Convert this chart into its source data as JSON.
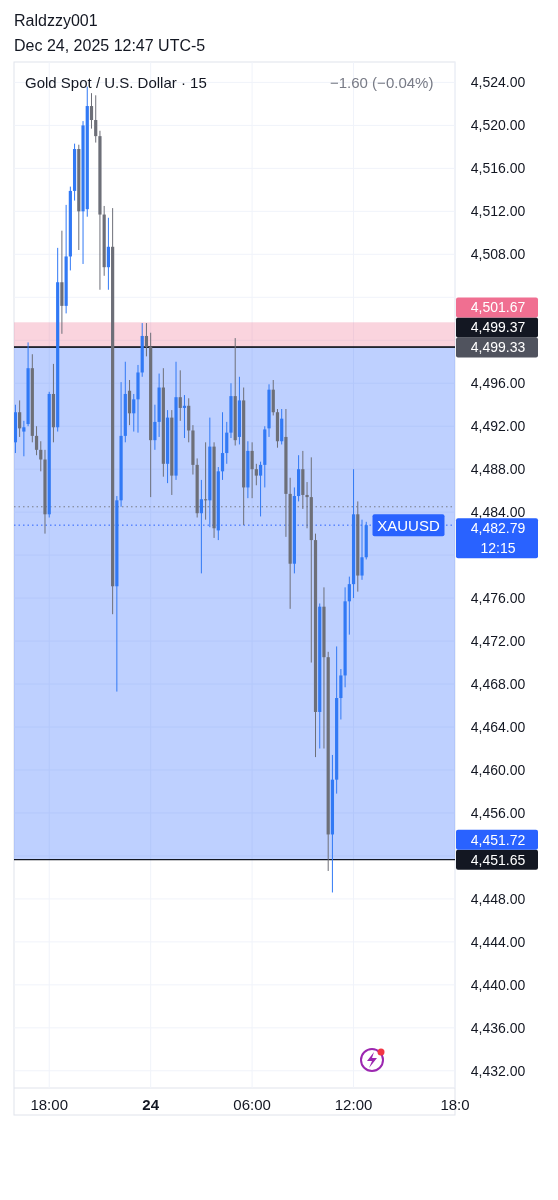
{
  "chart_data": {
    "type": "candlestick",
    "title": "Gold Spot / U.S. Dollar · 15",
    "subtitle": "Dec 24, 2025 12:47 UTC-5",
    "annotations": [
      "Raldzzy001",
      "−1.60 (−0.04%)",
      "12:15",
      {
        "text": "XAUUSD",
        "x": "2025-12-24T15:15",
        "y": 4482.79
      }
    ],
    "x": [
      "2025-12-23T16:00",
      "2025-12-23T16:15",
      "2025-12-23T16:30",
      "2025-12-23T16:45",
      "2025-12-23T17:00",
      "2025-12-23T17:15",
      "2025-12-23T17:30",
      "2025-12-23T17:45",
      "2025-12-23T18:00",
      "2025-12-23T18:15",
      "2025-12-23T18:30",
      "2025-12-23T18:45",
      "2025-12-23T19:00",
      "2025-12-23T19:15",
      "2025-12-23T19:30",
      "2025-12-23T19:45",
      "2025-12-23T20:00",
      "2025-12-23T20:15",
      "2025-12-23T20:30",
      "2025-12-23T20:45",
      "2025-12-23T21:00",
      "2025-12-23T21:15",
      "2025-12-23T21:30",
      "2025-12-23T21:45",
      "2025-12-23T22:00",
      "2025-12-23T22:15",
      "2025-12-23T22:30",
      "2025-12-23T22:45",
      "2025-12-23T23:00",
      "2025-12-23T23:15",
      "2025-12-23T23:30",
      "2025-12-23T23:45",
      "2025-12-24T00:00",
      "2025-12-24T00:15",
      "2025-12-24T00:30",
      "2025-12-24T00:45",
      "2025-12-24T01:00",
      "2025-12-24T01:15",
      "2025-12-24T01:30",
      "2025-12-24T01:45",
      "2025-12-24T02:00",
      "2025-12-24T02:15",
      "2025-12-24T02:30",
      "2025-12-24T02:45",
      "2025-12-24T03:00",
      "2025-12-24T03:15",
      "2025-12-24T03:30",
      "2025-12-24T03:45",
      "2025-12-24T04:00",
      "2025-12-24T04:15",
      "2025-12-24T04:30",
      "2025-12-24T04:45",
      "2025-12-24T05:00",
      "2025-12-24T05:15",
      "2025-12-24T05:30",
      "2025-12-24T05:45",
      "2025-12-24T06:00",
      "2025-12-24T06:15",
      "2025-12-24T06:30",
      "2025-12-24T06:45",
      "2025-12-24T07:00",
      "2025-12-24T07:15",
      "2025-12-24T07:30",
      "2025-12-24T07:45",
      "2025-12-24T08:00",
      "2025-12-24T08:15",
      "2025-12-24T08:30",
      "2025-12-24T08:45",
      "2025-12-24T09:00",
      "2025-12-24T09:15",
      "2025-12-24T09:30",
      "2025-12-24T09:45",
      "2025-12-24T10:00",
      "2025-12-24T10:15",
      "2025-12-24T10:30",
      "2025-12-24T10:45",
      "2025-12-24T11:00",
      "2025-12-24T11:15",
      "2025-12-24T11:30",
      "2025-12-24T11:45",
      "2025-12-24T12:00",
      "2025-12-24T12:15",
      "2025-12-24T12:30",
      "2025-12-24T12:45"
    ],
    "ohlc": [
      [
        4490.5,
        4494.0,
        4489.5,
        4493.3
      ],
      [
        4493.3,
        4494.4,
        4491.0,
        4491.8
      ],
      [
        4491.5,
        4492.5,
        4489.2,
        4491.9
      ],
      [
        4492.2,
        4499.8,
        4492.0,
        4497.4
      ],
      [
        4497.4,
        4498.7,
        4490.5,
        4491.1
      ],
      [
        4491.1,
        4492.0,
        4489.3,
        4489.8
      ],
      [
        4489.8,
        4490.6,
        4487.8,
        4488.9
      ],
      [
        4488.9,
        4489.8,
        4482.0,
        4483.8
      ],
      [
        4483.8,
        4495.2,
        4483.5,
        4495.0
      ],
      [
        4495.0,
        4497.8,
        4490.5,
        4491.9
      ],
      [
        4491.9,
        4508.6,
        4491.5,
        4505.4
      ],
      [
        4505.4,
        4510.2,
        4500.6,
        4503.2
      ],
      [
        4503.2,
        4512.6,
        4502.5,
        4507.8
      ],
      [
        4507.8,
        4514.3,
        4506.5,
        4513.9
      ],
      [
        4513.9,
        4518.3,
        4513.0,
        4517.8
      ],
      [
        4517.8,
        4518.2,
        4508.4,
        4512.0
      ],
      [
        4512.0,
        4520.4,
        4507.1,
        4520.0
      ],
      [
        4512.2,
        4523.6,
        4511.5,
        4521.8
      ],
      [
        4521.8,
        4523.0,
        4519.7,
        4520.5
      ],
      [
        4520.5,
        4522.8,
        4518.4,
        4519.0
      ],
      [
        4519.0,
        4519.5,
        4504.7,
        4511.7
      ],
      [
        4511.7,
        4512.5,
        4506.0,
        4506.8
      ],
      [
        4506.8,
        4511.4,
        4504.7,
        4508.7
      ],
      [
        4508.7,
        4512.3,
        4474.5,
        4477.1
      ],
      [
        4477.1,
        4485.5,
        4467.3,
        4485.1
      ],
      [
        4485.1,
        4496.1,
        4484.5,
        4491.1
      ],
      [
        4491.1,
        4498.0,
        4490.5,
        4495.0
      ],
      [
        4495.3,
        4496.3,
        4492.1,
        4493.2
      ],
      [
        4493.2,
        4495.0,
        4491.5,
        4494.5
      ],
      [
        4494.5,
        4497.7,
        4491.4,
        4497.0
      ],
      [
        4497.0,
        4501.6,
        4496.6,
        4500.4
      ],
      [
        4500.4,
        4501.6,
        4498.5,
        4499.4
      ],
      [
        4499.4,
        4500.7,
        4485.4,
        4490.7
      ],
      [
        4490.7,
        4494.0,
        4489.8,
        4492.4
      ],
      [
        4492.4,
        4496.9,
        4491.0,
        4495.6
      ],
      [
        4495.6,
        4497.4,
        4487.3,
        4488.5
      ],
      [
        4488.5,
        4493.5,
        4486.7,
        4492.8
      ],
      [
        4492.8,
        4493.5,
        4485.6,
        4487.4
      ],
      [
        4487.4,
        4498.0,
        4487.0,
        4494.7
      ],
      [
        4494.7,
        4497.2,
        4492.5,
        4493.7
      ],
      [
        4493.7,
        4494.9,
        4490.9,
        4493.9
      ],
      [
        4493.9,
        4494.6,
        4490.5,
        4491.6
      ],
      [
        4491.6,
        4492.1,
        4487.5,
        4488.4
      ],
      [
        4488.4,
        4489.0,
        4483.5,
        4483.9
      ],
      [
        4483.9,
        4487.0,
        4478.3,
        4485.2
      ],
      [
        4485.2,
        4490.5,
        4483.3,
        4485.1
      ],
      [
        4485.1,
        4492.8,
        4482.6,
        4490.1
      ],
      [
        4490.1,
        4490.5,
        4481.6,
        4482.5
      ],
      [
        4482.3,
        4488.2,
        4481.4,
        4487.8
      ],
      [
        4487.8,
        4493.3,
        4487.0,
        4489.5
      ],
      [
        4489.5,
        4492.4,
        4488.5,
        4491.4
      ],
      [
        4491.4,
        4496.0,
        4490.9,
        4494.8
      ],
      [
        4494.8,
        4500.2,
        4490.2,
        4490.7
      ],
      [
        4491.0,
        4496.6,
        4490.3,
        4494.4
      ],
      [
        4494.4,
        4495.6,
        4482.8,
        4486.3
      ],
      [
        4486.3,
        4490.6,
        4485.3,
        4489.7
      ],
      [
        4489.7,
        4490.5,
        4485.3,
        4488.0
      ],
      [
        4488.0,
        4488.5,
        4486.5,
        4487.4
      ],
      [
        4487.4,
        4488.7,
        4483.6,
        4488.4
      ],
      [
        4488.4,
        4492.0,
        4486.3,
        4491.7
      ],
      [
        4491.8,
        4495.9,
        4491.0,
        4495.4
      ],
      [
        4495.4,
        4496.3,
        4493.0,
        4493.3
      ],
      [
        4493.3,
        4493.6,
        4490.0,
        4490.6
      ],
      [
        4490.6,
        4493.6,
        4490.3,
        4492.7
      ],
      [
        4491.0,
        4493.6,
        4481.7,
        4485.7
      ],
      [
        4485.7,
        4487.2,
        4475.0,
        4479.2
      ],
      [
        4479.2,
        4486.3,
        4478.3,
        4485.5
      ],
      [
        4485.5,
        4489.3,
        4485.0,
        4488.0
      ],
      [
        4488.0,
        4489.7,
        4484.3,
        4485.6
      ],
      [
        4485.6,
        4486.8,
        4482.5,
        4485.4
      ],
      [
        4485.4,
        4489.1,
        4470.0,
        4481.4
      ],
      [
        4481.4,
        4482.0,
        4461.2,
        4465.4
      ],
      [
        4465.4,
        4475.5,
        4462.0,
        4475.2
      ],
      [
        4475.2,
        4477.0,
        4462.0,
        4470.5
      ],
      [
        4470.5,
        4471.0,
        4450.6,
        4454.0
      ],
      [
        4454.0,
        4461.4,
        4448.6,
        4459.1
      ],
      [
        4459.1,
        4471.5,
        4457.8,
        4466.7
      ],
      [
        4466.7,
        4469.4,
        4464.7,
        4468.8
      ],
      [
        4468.8,
        4477.0,
        4467.7,
        4475.7
      ],
      [
        4475.7,
        4478.0,
        4472.6,
        4477.3
      ],
      [
        4477.3,
        4488.0,
        4476.0,
        4483.8
      ],
      [
        4483.8,
        4485.0,
        4476.6,
        4478.1
      ],
      [
        4478.1,
        4483.3,
        4477.7,
        4479.8
      ],
      [
        4479.8,
        4483.1,
        4479.6,
        4482.79
      ]
    ],
    "colors": [
      "#3179f5",
      "#6d6f78",
      "#3179f5",
      "#3179f5",
      "#6d6f78",
      "#6d6f78",
      "#6d6f78",
      "#6d6f78",
      "#3179f5",
      "#6d6f78",
      "#3179f5",
      "#6d6f78",
      "#3179f5",
      "#3179f5",
      "#3179f5",
      "#6d6f78",
      "#3179f5",
      "#3179f5",
      "#6d6f78",
      "#6d6f78",
      "#6d6f78",
      "#6d6f78",
      "#3179f5",
      "#6d6f78",
      "#3179f5",
      "#3179f5",
      "#3179f5",
      "#6d6f78",
      "#3179f5",
      "#3179f5",
      "#3179f5",
      "#6d6f78",
      "#6d6f78",
      "#3179f5",
      "#3179f5",
      "#6d6f78",
      "#3179f5",
      "#6d6f78",
      "#3179f5",
      "#6d6f78",
      "#3179f5",
      "#6d6f78",
      "#6d6f78",
      "#6d6f78",
      "#3179f5",
      "#6d6f78",
      "#3179f5",
      "#6d6f78",
      "#3179f5",
      "#3179f5",
      "#3179f5",
      "#3179f5",
      "#6d6f78",
      "#3179f5",
      "#6d6f78",
      "#3179f5",
      "#6d6f78",
      "#6d6f78",
      "#3179f5",
      "#3179f5",
      "#3179f5",
      "#6d6f78",
      "#6d6f78",
      "#3179f5",
      "#6d6f78",
      "#6d6f78",
      "#3179f5",
      "#3179f5",
      "#6d6f78",
      "#6d6f78",
      "#6d6f78",
      "#6d6f78",
      "#3179f5",
      "#6d6f78",
      "#6d6f78",
      "#3179f5",
      "#3179f5",
      "#3179f5",
      "#3179f5",
      "#3179f5",
      "#3179f5",
      "#6d6f78",
      "#3179f5",
      "#3179f5"
    ],
    "xlim": [
      "2025-12-23T15:55",
      "2025-12-24T18:00"
    ],
    "xticks": [
      {
        "value": "2025-12-23T18:00",
        "label": "18:00"
      },
      {
        "value": "2025-12-24T00:00",
        "label": "24"
      },
      {
        "value": "2025-12-24T06:00",
        "label": "06:00"
      },
      {
        "value": "2025-12-24T12:00",
        "label": "12:00"
      },
      {
        "value": "2025-12-24T18:00",
        "label": "18:0"
      }
    ],
    "ylim": [
      4430.4,
      4525.9
    ],
    "yticks": [
      {
        "value": 4432,
        "label": "4,432.00"
      },
      {
        "value": 4436,
        "label": "4,436.00"
      },
      {
        "value": 4440,
        "label": "4,440.00"
      },
      {
        "value": 4444,
        "label": "4,444.00"
      },
      {
        "value": 4448,
        "label": "4,448.00"
      },
      {
        "value": 4452,
        "label": null
      },
      {
        "value": 4456,
        "label": "4,456.00"
      },
      {
        "value": 4460,
        "label": "4,460.00"
      },
      {
        "value": 4464,
        "label": "4,464.00"
      },
      {
        "value": 4468,
        "label": "4,468.00"
      },
      {
        "value": 4472,
        "label": "4,472.00"
      },
      {
        "value": 4476,
        "label": "4,476.00"
      },
      {
        "value": 4480,
        "label": null
      },
      {
        "value": 4484,
        "label": "4,484.00"
      },
      {
        "value": 4488,
        "label": "4,488.00"
      },
      {
        "value": 4492,
        "label": "4,492.00"
      },
      {
        "value": 4496,
        "label": "4,496.00"
      },
      {
        "value": 4500,
        "label": null
      },
      {
        "value": 4504,
        "label": null
      },
      {
        "value": 4508,
        "label": "4,508.00"
      },
      {
        "value": 4512,
        "label": "4,512.00"
      },
      {
        "value": 4516,
        "label": "4,516.00"
      },
      {
        "value": 4520,
        "label": "4,520.00"
      },
      {
        "value": 4524,
        "label": "4,524.00"
      }
    ],
    "grid": true,
    "ref_lines": [
      {
        "axis": "y",
        "value": 4499.33,
        "label": "4,499.33",
        "color": "#50535e",
        "line_style": "solid"
      },
      {
        "axis": "y",
        "value": 4499.37,
        "label": "4,499.37",
        "color": "#131722",
        "line_style": "solid"
      },
      {
        "axis": "y",
        "value": 4451.65,
        "label": "4,451.65",
        "color": "#131722",
        "line_style": "solid"
      },
      {
        "axis": "y",
        "value": 4482.79,
        "label": "4,482.79",
        "color": "#2962ff",
        "line_style": "dotted"
      },
      {
        "axis": "y",
        "value": 4484.5,
        "color": "#787b86",
        "line_style": "dotted"
      }
    ],
    "bands": [
      {
        "axis": "y",
        "from": 4499.37,
        "to": 4501.67,
        "label": "4,501.67",
        "color": "#f06f91"
      },
      {
        "axis": "y",
        "from": 4499.37,
        "to": 4451.72,
        "label": "4,451.72",
        "color": "#2962ff"
      }
    ]
  }
}
